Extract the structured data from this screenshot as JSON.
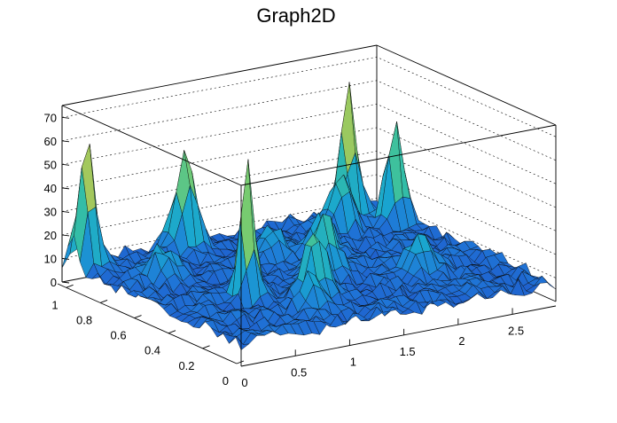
{
  "chart_data": {
    "type": "surface3d",
    "title": "Graph2D",
    "xlabel": "",
    "ylabel": "",
    "zlabel": "",
    "xlim": [
      0,
      2.9
    ],
    "ylim": [
      0,
      1.05
    ],
    "zlim": [
      0,
      75
    ],
    "x_ticks": [
      "0",
      "0.5",
      "1",
      "1.5",
      "2",
      "2.5"
    ],
    "y_ticks": [
      "0",
      "0.2",
      "0.4",
      "0.6",
      "0.8",
      "1"
    ],
    "z_ticks": [
      "0",
      "10",
      "20",
      "30",
      "40",
      "50",
      "60",
      "70"
    ],
    "grid": true,
    "colormap": [
      "#1f40c0",
      "#1f78d8",
      "#19a6d0",
      "#35bfa4",
      "#7fcc6a",
      "#d6c24a",
      "#f5d24d"
    ],
    "baseline": 5,
    "peaks": [
      {
        "x": 0.12,
        "y": 0.98,
        "height": 57,
        "width": 0.07
      },
      {
        "x": 0.72,
        "y": 0.42,
        "height": 58,
        "width": 0.06
      },
      {
        "x": 1.02,
        "y": 0.98,
        "height": 42,
        "width": 0.08
      },
      {
        "x": 2.53,
        "y": 0.98,
        "height": 55,
        "width": 0.07
      },
      {
        "x": 2.75,
        "y": 0.85,
        "height": 44,
        "width": 0.07
      },
      {
        "x": 1.15,
        "y": 0.3,
        "height": 30,
        "width": 0.09
      },
      {
        "x": 1.55,
        "y": 0.5,
        "height": 25,
        "width": 0.1
      },
      {
        "x": 0.45,
        "y": 0.75,
        "height": 14,
        "width": 0.1
      },
      {
        "x": 2.3,
        "y": 0.88,
        "height": 25,
        "width": 0.09
      },
      {
        "x": 1.85,
        "y": 0.7,
        "height": 15,
        "width": 0.1
      },
      {
        "x": 0.95,
        "y": 0.2,
        "height": 14,
        "width": 0.08
      },
      {
        "x": 2.2,
        "y": 0.35,
        "height": 14,
        "width": 0.1
      },
      {
        "x": 1.45,
        "y": 0.75,
        "height": 12,
        "width": 0.1
      }
    ]
  }
}
